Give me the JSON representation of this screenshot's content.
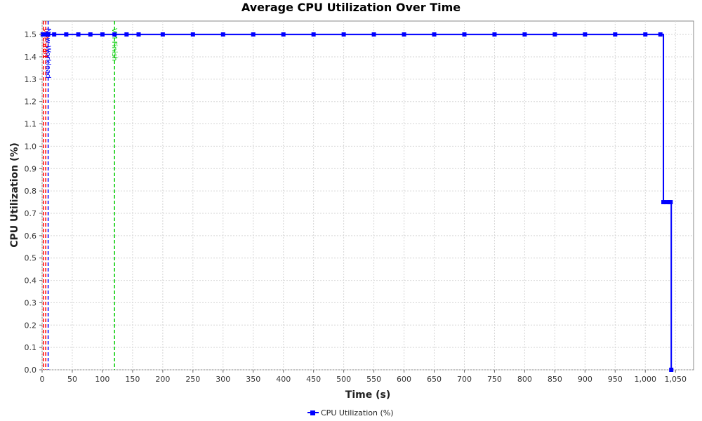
{
  "chart_data": {
    "type": "line",
    "title": "Average CPU Utilization Over Time",
    "xlabel": "Time (s)",
    "ylabel": "CPU Utilization (%)",
    "xlim": [
      0,
      1080
    ],
    "ylim": [
      0.0,
      1.56
    ],
    "x_ticks": [
      0,
      50,
      100,
      150,
      200,
      250,
      300,
      350,
      400,
      450,
      500,
      550,
      600,
      650,
      700,
      750,
      800,
      850,
      900,
      950,
      1000,
      1050
    ],
    "x_tick_labels": [
      "0",
      "50",
      "100",
      "150",
      "200",
      "250",
      "300",
      "350",
      "400",
      "450",
      "500",
      "550",
      "600",
      "650",
      "700",
      "750",
      "800",
      "850",
      "900",
      "950",
      "1,000",
      "1,050"
    ],
    "y_ticks": [
      0.0,
      0.1,
      0.2,
      0.3,
      0.4,
      0.5,
      0.6,
      0.7,
      0.8,
      0.9,
      1.0,
      1.1,
      1.2,
      1.3,
      1.4,
      1.5
    ],
    "y_tick_labels": [
      "0.0",
      "0.1",
      "0.2",
      "0.3",
      "0.4",
      "0.5",
      "0.6",
      "0.7",
      "0.8",
      "0.9",
      "1.0",
      "1.1",
      "1.2",
      "1.3",
      "1.4",
      "1.5"
    ],
    "grid": true,
    "legend_position": "bottom-center",
    "series": [
      {
        "name": "CPU Utilization (%)",
        "color": "#0000ff",
        "x": [
          1,
          5,
          10,
          20,
          40,
          60,
          80,
          100,
          120,
          140,
          160,
          200,
          250,
          300,
          350,
          400,
          450,
          500,
          550,
          600,
          650,
          700,
          750,
          800,
          850,
          900,
          950,
          1000,
          1025,
          1030,
          1035,
          1040,
          1042,
          1043
        ],
        "y": [
          1.5,
          1.5,
          1.5,
          1.5,
          1.5,
          1.5,
          1.5,
          1.5,
          1.5,
          1.5,
          1.5,
          1.5,
          1.5,
          1.5,
          1.5,
          1.5,
          1.5,
          1.5,
          1.5,
          1.5,
          1.5,
          1.5,
          1.5,
          1.5,
          1.5,
          1.5,
          1.5,
          1.5,
          1.5,
          0.75,
          0.75,
          0.75,
          0.75,
          0.0
        ]
      }
    ],
    "event_markers": [
      {
        "x": 2,
        "label": "",
        "color": "#ff0000"
      },
      {
        "x": 6,
        "label": "VM Start",
        "color": "#ff0000"
      },
      {
        "x": 10,
        "label": "New Workload",
        "color": "#0000ff"
      },
      {
        "x": 120,
        "label": "VM Finish",
        "color": "#00cc00"
      }
    ]
  }
}
